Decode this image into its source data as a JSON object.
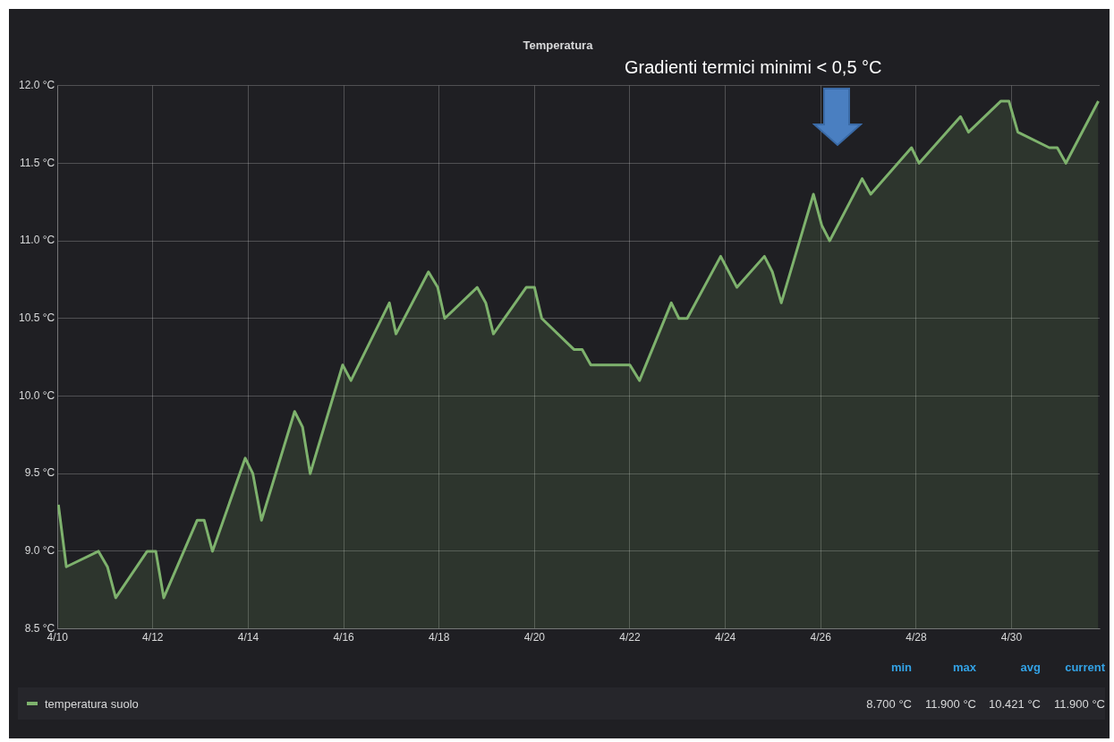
{
  "chart_data": {
    "type": "area",
    "title": "Temperatura",
    "annotations": [
      "Gradienti termici minimi < 0,5 °C",
      "min",
      "max",
      "avg",
      "current",
      "8.700 °C",
      "11.900 °C",
      "10.421 °C",
      "11.900 °C"
    ],
    "series": [
      {
        "name": "temperatura suolo",
        "color": "#7eb26d",
        "x": [
          "--04-10T00:30",
          "--04-10T04:30",
          "--04-10T20:40",
          "--04-11T01:10",
          "--04-11T05:20",
          "--04-11T21:10",
          "--04-12T01:30",
          "--04-12T05:30",
          "--04-12T22:20",
          "--04-13T01:50",
          "--04-13T06:00",
          "--04-13T22:30",
          "--04-14T02:20",
          "--04-14T06:40",
          "--04-14T23:20",
          "--04-15T03:20",
          "--04-15T07:10",
          "--04-15T23:30",
          "--04-16T03:40",
          "--04-16T23:00",
          "--04-17T02:20",
          "--04-17T18:40",
          "--04-17T23:20",
          "--04-18T02:50",
          "--04-18T19:10",
          "--04-18T23:30",
          "--04-19T03:20",
          "--04-19T19:50",
          "--04-20T00:00",
          "--04-20T03:40",
          "--04-20T19:50",
          "--04-21T00:00",
          "--04-21T04:20",
          "--04-22T00:00",
          "--04-22T04:50",
          "--04-22T20:50",
          "--04-23T00:40",
          "--04-23T04:50",
          "--04-23T21:40",
          "--04-24T05:50",
          "--04-24T19:40",
          "--04-24T23:40",
          "--04-25T04:10",
          "--04-25T20:20",
          "--04-26T00:30",
          "--04-26T04:30",
          "--04-26T20:50",
          "--04-27T01:10",
          "--04-27T21:40",
          "--04-28T01:30",
          "--04-28T22:20",
          "--04-29T02:20",
          "--04-29T18:40",
          "--04-29T22:40",
          "--04-30T03:10",
          "--04-30T19:00",
          "--04-30T23:00",
          "--05-01T03:20",
          "--05-01T19:40"
        ],
        "values": [
          9.3,
          8.9,
          9.0,
          8.9,
          8.7,
          9.0,
          9.0,
          8.7,
          9.2,
          9.2,
          9.0,
          9.6,
          9.5,
          9.2,
          9.9,
          9.8,
          9.5,
          10.2,
          10.1,
          10.6,
          10.4,
          10.8,
          10.7,
          10.5,
          10.7,
          10.6,
          10.4,
          10.7,
          10.7,
          10.5,
          10.3,
          10.3,
          10.2,
          10.2,
          10.1,
          10.6,
          10.5,
          10.5,
          10.9,
          10.7,
          10.9,
          10.8,
          10.6,
          11.3,
          11.1,
          11.0,
          11.4,
          11.3,
          11.6,
          11.5,
          11.8,
          11.7,
          11.9,
          11.9,
          11.7,
          11.6,
          11.6,
          11.5,
          11.9
        ]
      }
    ],
    "xlim": [
      "--04-10",
      "--05-01T20:20"
    ],
    "xticks": [
      {
        "value": "--04-10",
        "label": "4/10"
      },
      {
        "value": "--04-12",
        "label": "4/12"
      },
      {
        "value": "--04-14",
        "label": "4/14"
      },
      {
        "value": "--04-16",
        "label": "4/16"
      },
      {
        "value": "--04-18",
        "label": "4/18"
      },
      {
        "value": "--04-20",
        "label": "4/20"
      },
      {
        "value": "--04-22",
        "label": "4/22"
      },
      {
        "value": "--04-24",
        "label": "4/24"
      },
      {
        "value": "--04-26",
        "label": "4/26"
      },
      {
        "value": "--04-28",
        "label": "4/28"
      },
      {
        "value": "--04-30",
        "label": "4/30"
      }
    ],
    "ylim": [
      8.5,
      12
    ],
    "yticks": [
      {
        "value": 8.5,
        "label": "8.5 °C"
      },
      {
        "value": 9,
        "label": "9.0 °C"
      },
      {
        "value": 9.5,
        "label": "9.5 °C"
      },
      {
        "value": 10,
        "label": "10.0 °C"
      },
      {
        "value": 10.5,
        "label": "10.5 °C"
      },
      {
        "value": 11,
        "label": "11.0 °C"
      },
      {
        "value": 11.5,
        "label": "11.5 °C"
      },
      {
        "value": 12,
        "label": "12.0 °C"
      }
    ],
    "grid": true,
    "legend": "bottom",
    "marker": "none",
    "line_style": "solid"
  }
}
